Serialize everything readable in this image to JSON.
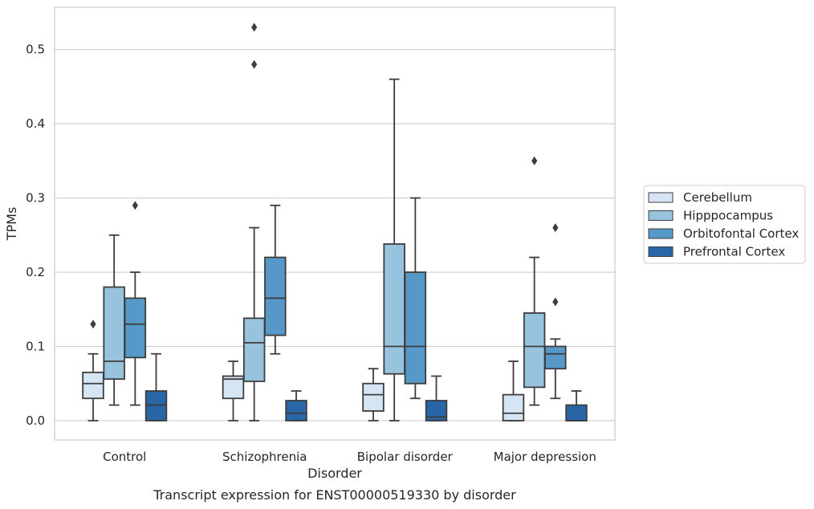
{
  "chart_data": {
    "type": "box",
    "title": "",
    "caption": "Transcript expression for ENST00000519330 by disorder",
    "xlabel": "Disorder",
    "ylabel": "TPMs",
    "ylim": [
      -0.026,
      0.557
    ],
    "yticks": [
      "0.0",
      "0.1",
      "0.2",
      "0.3",
      "0.4",
      "0.5"
    ],
    "ytick_values": [
      0.0,
      0.1,
      0.2,
      0.3,
      0.4,
      0.5
    ],
    "grid": "horizontal",
    "legend_position": "right",
    "categories": [
      "Control",
      "Schizophrenia",
      "Bipolar disorder",
      "Major depression"
    ],
    "series": [
      {
        "name": "Cerebellum",
        "color": "#d6e5f4",
        "boxes": [
          {
            "whisker_low": 0.0,
            "q1": 0.03,
            "median": 0.05,
            "q3": 0.065,
            "whisker_high": 0.09,
            "outliers": [
              0.13
            ]
          },
          {
            "whisker_low": 0.0,
            "q1": 0.03,
            "median": 0.056,
            "q3": 0.06,
            "whisker_high": 0.08,
            "outliers": []
          },
          {
            "whisker_low": 0.0,
            "q1": 0.013,
            "median": 0.035,
            "q3": 0.05,
            "whisker_high": 0.07,
            "outliers": []
          },
          {
            "whisker_low": 0.0,
            "q1": 0.0,
            "median": 0.01,
            "q3": 0.035,
            "whisker_high": 0.08,
            "outliers": []
          }
        ]
      },
      {
        "name": "Hipppocampus",
        "color": "#98c3de",
        "boxes": [
          {
            "whisker_low": 0.021,
            "q1": 0.056,
            "median": 0.08,
            "q3": 0.18,
            "whisker_high": 0.25,
            "outliers": []
          },
          {
            "whisker_low": 0.0,
            "q1": 0.053,
            "median": 0.105,
            "q3": 0.138,
            "whisker_high": 0.26,
            "outliers": [
              0.48,
              0.53
            ]
          },
          {
            "whisker_low": 0.0,
            "q1": 0.063,
            "median": 0.1,
            "q3": 0.238,
            "whisker_high": 0.46,
            "outliers": []
          },
          {
            "whisker_low": 0.021,
            "q1": 0.045,
            "median": 0.1,
            "q3": 0.145,
            "whisker_high": 0.22,
            "outliers": [
              0.35
            ]
          }
        ]
      },
      {
        "name": "Orbitofontal Cortex",
        "color": "#5699c8",
        "boxes": [
          {
            "whisker_low": 0.021,
            "q1": 0.085,
            "median": 0.13,
            "q3": 0.165,
            "whisker_high": 0.2,
            "outliers": [
              0.29
            ]
          },
          {
            "whisker_low": 0.09,
            "q1": 0.115,
            "median": 0.165,
            "q3": 0.22,
            "whisker_high": 0.29,
            "outliers": []
          },
          {
            "whisker_low": 0.03,
            "q1": 0.05,
            "median": 0.1,
            "q3": 0.2,
            "whisker_high": 0.3,
            "outliers": []
          },
          {
            "whisker_low": 0.03,
            "q1": 0.07,
            "median": 0.09,
            "q3": 0.1,
            "whisker_high": 0.11,
            "outliers": [
              0.16,
              0.26
            ]
          }
        ]
      },
      {
        "name": "Prefrontal Cortex",
        "color": "#2866a8",
        "boxes": [
          {
            "whisker_low": 0.0,
            "q1": 0.0,
            "median": 0.021,
            "q3": 0.04,
            "whisker_high": 0.09,
            "outliers": []
          },
          {
            "whisker_low": 0.0,
            "q1": 0.0,
            "median": 0.01,
            "q3": 0.027,
            "whisker_high": 0.04,
            "outliers": []
          },
          {
            "whisker_low": 0.0,
            "q1": 0.0,
            "median": 0.005,
            "q3": 0.027,
            "whisker_high": 0.06,
            "outliers": []
          },
          {
            "whisker_low": 0.0,
            "q1": 0.0,
            "median": 0.0,
            "q3": 0.021,
            "whisker_high": 0.04,
            "outliers": []
          }
        ]
      }
    ]
  }
}
